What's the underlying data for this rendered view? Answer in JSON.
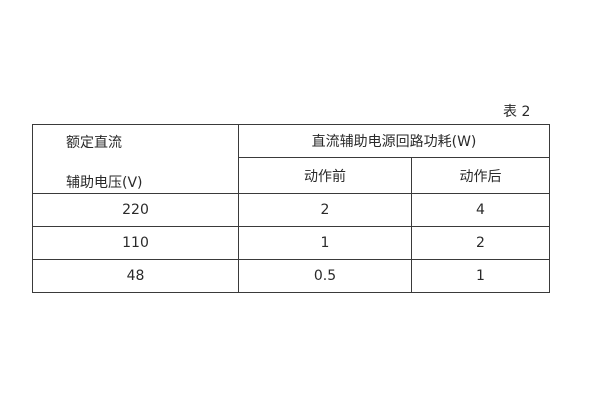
{
  "caption": "表 2",
  "header": {
    "voltage_line1": "额定直流",
    "voltage_line2": "辅助电压(V)",
    "power_group": "直流辅助电源回路功耗(W)",
    "before": "动作前",
    "after": "动作后"
  },
  "rows": [
    {
      "voltage": "220",
      "before": "2",
      "after": "4"
    },
    {
      "voltage": "110",
      "before": "1",
      "after": "2"
    },
    {
      "voltage": "48",
      "before": "0.5",
      "after": "1"
    }
  ]
}
